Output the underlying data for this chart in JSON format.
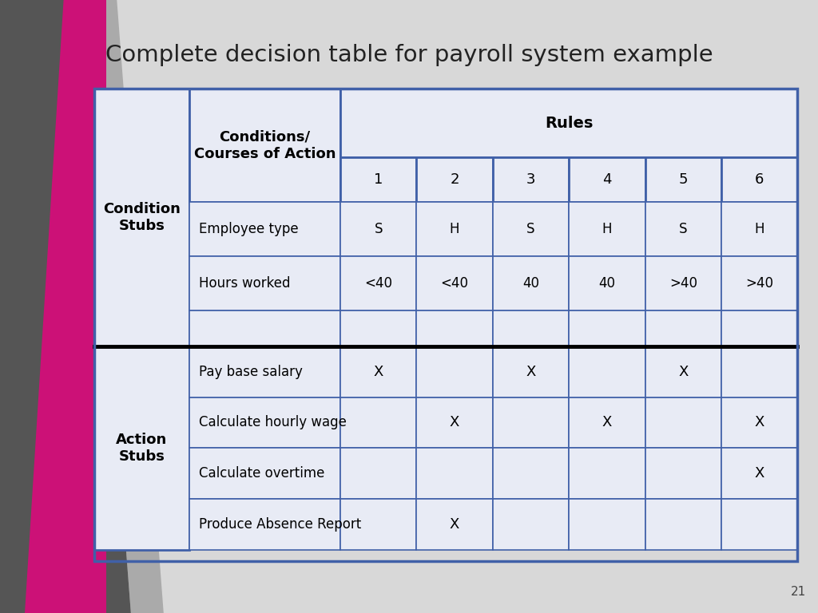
{
  "title": "Complete decision table for payroll system example",
  "title_fontsize": 21,
  "title_color": "#222222",
  "background_color": "#d8d8d8",
  "table_bg": "#e8ebf5",
  "border_color": "#4060a8",
  "slide_number": "21",
  "left_col_header_1": "Condition\nStubs",
  "left_col_header_2": "Action\nStubs",
  "conditions_header": "Conditions/\nCourses of Action",
  "rules_header": "Rules",
  "rule_numbers": [
    "1",
    "2",
    "3",
    "4",
    "5",
    "6"
  ],
  "condition_rows": [
    {
      "label": "Employee type",
      "values": [
        "S",
        "H",
        "S",
        "H",
        "S",
        "H"
      ]
    },
    {
      "label": "Hours worked",
      "values": [
        "<40",
        "<40",
        "40",
        "40",
        ">40",
        ">40"
      ]
    },
    {
      "label": "",
      "values": [
        "",
        "",
        "",
        "",
        "",
        ""
      ]
    }
  ],
  "action_rows": [
    {
      "label": "Pay base salary",
      "values": [
        "X",
        "",
        "X",
        "",
        "X",
        ""
      ]
    },
    {
      "label": "Calculate hourly wage",
      "values": [
        "",
        "X",
        "",
        "X",
        "",
        "X"
      ]
    },
    {
      "label": "Calculate overtime",
      "values": [
        "",
        "",
        "",
        "",
        "",
        "X"
      ]
    },
    {
      "label": "Produce Absence Report",
      "values": [
        "",
        "X",
        "",
        "",
        "",
        ""
      ]
    }
  ],
  "pink_color": "#cc1177",
  "dark_gray_color": "#555555",
  "light_gray_color": "#aaaaaa"
}
